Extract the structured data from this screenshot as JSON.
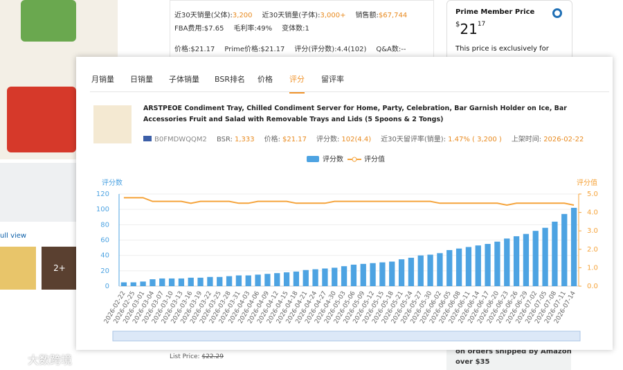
{
  "background": {
    "info_rows": [
      [
        {
          "label": "近30天销量(父体):",
          "value": "3,200"
        },
        {
          "label": "近30天销量(子体):",
          "value": "3,000+"
        },
        {
          "label": "销售额:",
          "value": "$67,744"
        }
      ],
      [
        {
          "label": "FBA费用:",
          "value": "$7.65"
        },
        {
          "label": "毛利率:",
          "value": "49%"
        },
        {
          "label": "变体数:",
          "value": "1"
        }
      ],
      [
        {
          "label": "价格:",
          "value": "$21.17"
        },
        {
          "label": "Prime价格:",
          "value": "$21.17"
        },
        {
          "label": "评分(评分数):",
          "value": "4.4(102)"
        },
        {
          "label": "Q&A数:",
          "value": "--"
        }
      ]
    ],
    "prime_title": "Prime Member Price",
    "prime_currency": "$",
    "prime_whole": "21",
    "prime_cents": "17",
    "prime_note": "This price is exclusively for",
    "full_view": "ull view",
    "more_images": "2+",
    "list_price_label": "List Price:",
    "list_price": "$22.29",
    "shipping_line1": "on orders shipped by Amazon",
    "shipping_line2": "over $35",
    "watermark": "大数跨境"
  },
  "popup": {
    "tabs": [
      "月销量",
      "日销量",
      "子体销量",
      "BSR排名",
      "价格",
      "评分",
      "留评率"
    ],
    "active_tab": 5,
    "product_title": "ARSTPEOE Condiment Tray, Chilled Condiment Server for Home, Party, Celebration, Bar Garnish Holder on Ice, Bar Accessories Fruit and Salad with Removable Trays and Lids (5 Spoons & 2 Tongs)",
    "asin": "B0FMDWQQM2",
    "meta": [
      {
        "label": "BSR:",
        "value": "1,333"
      },
      {
        "label": "价格:",
        "value": "$21.17"
      },
      {
        "label": "评分数:",
        "value": "102(4.4)"
      },
      {
        "label": "近30天留评率(销量):",
        "value": "1.47% ( 3,200 )"
      },
      {
        "label": "上架时间:",
        "value": "2026-02-22"
      }
    ]
  },
  "chart_data": {
    "type": "bar-line",
    "y_axis_label": "评分数",
    "y2_axis_label": "评分值",
    "categories": [
      "2026-02-22",
      "2026-02-25",
      "2026-03-01",
      "2026-03-04",
      "2026-03-07",
      "2026-03-10",
      "2026-03-13",
      "2026-03-16",
      "2026-03-19",
      "2026-03-22",
      "2026-03-25",
      "2026-03-28",
      "2026-03-31",
      "2026-04-03",
      "2026-04-06",
      "2026-04-09",
      "2026-04-12",
      "2026-04-15",
      "2026-04-18",
      "2026-04-21",
      "2026-04-24",
      "2026-04-27",
      "2026-04-30",
      "2026-05-03",
      "2026-05-06",
      "2026-05-09",
      "2026-05-12",
      "2026-05-15",
      "2026-05-18",
      "2026-05-21",
      "2026-05-24",
      "2026-05-27",
      "2026-05-30",
      "2026-06-02",
      "2026-06-05",
      "2026-06-08",
      "2026-06-11",
      "2026-06-14",
      "2026-06-17",
      "2026-06-20",
      "2026-06-23",
      "2026-06-26",
      "2026-06-29",
      "2026-07-02",
      "2026-07-05",
      "2026-07-08",
      "2026-07-11",
      "2026-07-14"
    ],
    "series": [
      {
        "name": "评分数",
        "color": "#4da3e2",
        "values": [
          5,
          5,
          6,
          9,
          10,
          10,
          10,
          11,
          11,
          12,
          12,
          13,
          14,
          14,
          15,
          16,
          17,
          18,
          19,
          21,
          22,
          23,
          24,
          26,
          28,
          29,
          30,
          31,
          32,
          35,
          37,
          40,
          41,
          43,
          47,
          49,
          51,
          53,
          55,
          58,
          62,
          65,
          68,
          72,
          76,
          84,
          94,
          102
        ]
      },
      {
        "name": "评分值",
        "color": "#f5a33a",
        "axis": "y2",
        "values": [
          4.8,
          4.8,
          4.8,
          4.6,
          4.6,
          4.6,
          4.6,
          4.5,
          4.6,
          4.6,
          4.6,
          4.6,
          4.5,
          4.5,
          4.6,
          4.6,
          4.6,
          4.6,
          4.5,
          4.5,
          4.5,
          4.5,
          4.6,
          4.6,
          4.6,
          4.6,
          4.6,
          4.6,
          4.6,
          4.6,
          4.6,
          4.6,
          4.6,
          4.5,
          4.5,
          4.5,
          4.5,
          4.5,
          4.5,
          4.5,
          4.4,
          4.5,
          4.5,
          4.5,
          4.5,
          4.5,
          4.5,
          4.4
        ]
      }
    ],
    "ylim": [
      0,
      120
    ],
    "yticks": [
      0,
      20,
      40,
      60,
      80,
      100,
      120
    ],
    "y2lim": [
      0,
      5
    ],
    "y2ticks": [
      {
        "value": 0,
        "label": "0.0"
      },
      {
        "value": 1,
        "label": "1.0"
      },
      {
        "value": 2,
        "label": "2.0"
      },
      {
        "value": 3,
        "label": "3.0"
      },
      {
        "value": 4,
        "label": "4.0"
      },
      {
        "value": 5,
        "label": "5.0"
      }
    ],
    "grid": true
  }
}
